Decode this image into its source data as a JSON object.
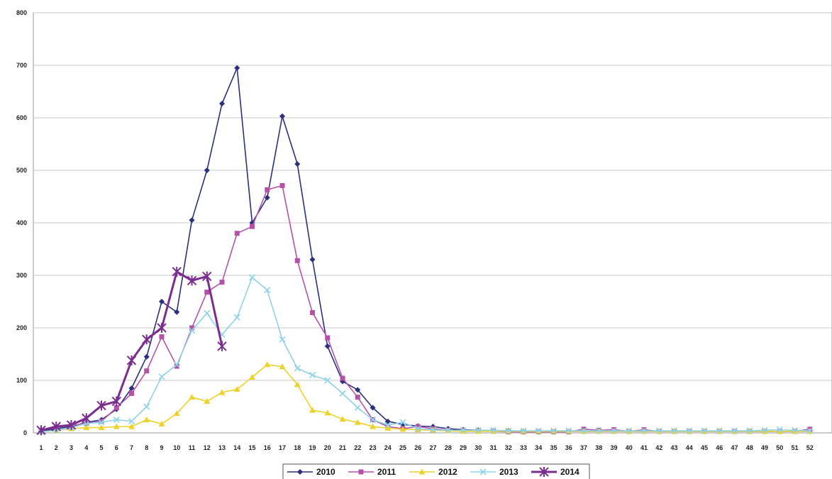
{
  "chart_data": {
    "type": "line",
    "title": "",
    "xlabel": "",
    "ylabel": "",
    "ylim": [
      0,
      800
    ],
    "yticks": [
      0,
      100,
      200,
      300,
      400,
      500,
      600,
      700,
      800
    ],
    "x": [
      1,
      2,
      3,
      4,
      5,
      6,
      7,
      8,
      9,
      10,
      11,
      12,
      13,
      14,
      15,
      16,
      17,
      18,
      19,
      20,
      21,
      22,
      23,
      24,
      25,
      26,
      27,
      28,
      29,
      30,
      31,
      32,
      33,
      34,
      35,
      36,
      37,
      38,
      39,
      40,
      41,
      42,
      43,
      44,
      45,
      46,
      47,
      48,
      49,
      50,
      51,
      52
    ],
    "grid": true,
    "legend_position": "bottom",
    "series": [
      {
        "name": "2010",
        "color": "#2b2f7d",
        "marker": "diamond",
        "values": [
          3,
          8,
          12,
          20,
          25,
          45,
          85,
          145,
          250,
          230,
          405,
          500,
          627,
          695,
          400,
          448,
          603,
          512,
          330,
          165,
          98,
          82,
          48,
          22,
          16,
          13,
          12,
          8,
          6,
          5,
          4,
          4,
          3,
          3,
          3,
          3,
          3,
          3,
          3,
          3,
          3,
          3,
          3,
          3,
          3,
          3,
          3,
          3,
          3,
          3,
          3,
          3
        ]
      },
      {
        "name": "2011",
        "color": "#b552a8",
        "marker": "square",
        "values": [
          5,
          10,
          14,
          18,
          22,
          48,
          75,
          118,
          183,
          127,
          200,
          268,
          287,
          380,
          393,
          463,
          471,
          328,
          229,
          181,
          104,
          68,
          25,
          12,
          8,
          12,
          8,
          5,
          5,
          4,
          3,
          2,
          2,
          2,
          2,
          2,
          7,
          5,
          6,
          3,
          6,
          3,
          3,
          3,
          3,
          3,
          3,
          3,
          3,
          3,
          3,
          7
        ]
      },
      {
        "name": "2012",
        "color": "#eed12a",
        "marker": "triangle",
        "values": [
          2,
          5,
          8,
          10,
          10,
          12,
          12,
          25,
          17,
          37,
          68,
          60,
          77,
          83,
          106,
          130,
          126,
          92,
          43,
          38,
          26,
          20,
          12,
          9,
          7,
          6,
          5,
          4,
          3,
          3,
          3,
          3,
          3,
          3,
          3,
          3,
          3,
          3,
          3,
          3,
          3,
          3,
          3,
          3,
          3,
          3,
          3,
          3,
          3,
          3,
          3,
          3
        ]
      },
      {
        "name": "2013",
        "color": "#8fd3e8",
        "marker": "x",
        "values": [
          2,
          5,
          10,
          18,
          20,
          25,
          22,
          50,
          107,
          130,
          195,
          228,
          187,
          220,
          296,
          272,
          178,
          123,
          110,
          100,
          75,
          48,
          25,
          15,
          20,
          8,
          6,
          5,
          5,
          5,
          5,
          4,
          4,
          4,
          4,
          4,
          4,
          4,
          4,
          4,
          4,
          4,
          4,
          4,
          4,
          4,
          4,
          4,
          5,
          6,
          5,
          4
        ]
      },
      {
        "name": "2014",
        "color": "#7b2c8f",
        "marker": "star",
        "values": [
          5,
          12,
          15,
          28,
          52,
          60,
          138,
          178,
          200,
          307,
          290,
          298,
          165,
          null,
          null,
          null,
          null,
          null,
          null,
          null,
          null,
          null,
          null,
          null,
          null,
          null,
          null,
          null,
          null,
          null,
          null,
          null,
          null,
          null,
          null,
          null,
          null,
          null,
          null,
          null,
          null,
          null,
          null,
          null,
          null,
          null,
          null,
          null,
          null,
          null,
          null,
          null
        ]
      }
    ]
  }
}
